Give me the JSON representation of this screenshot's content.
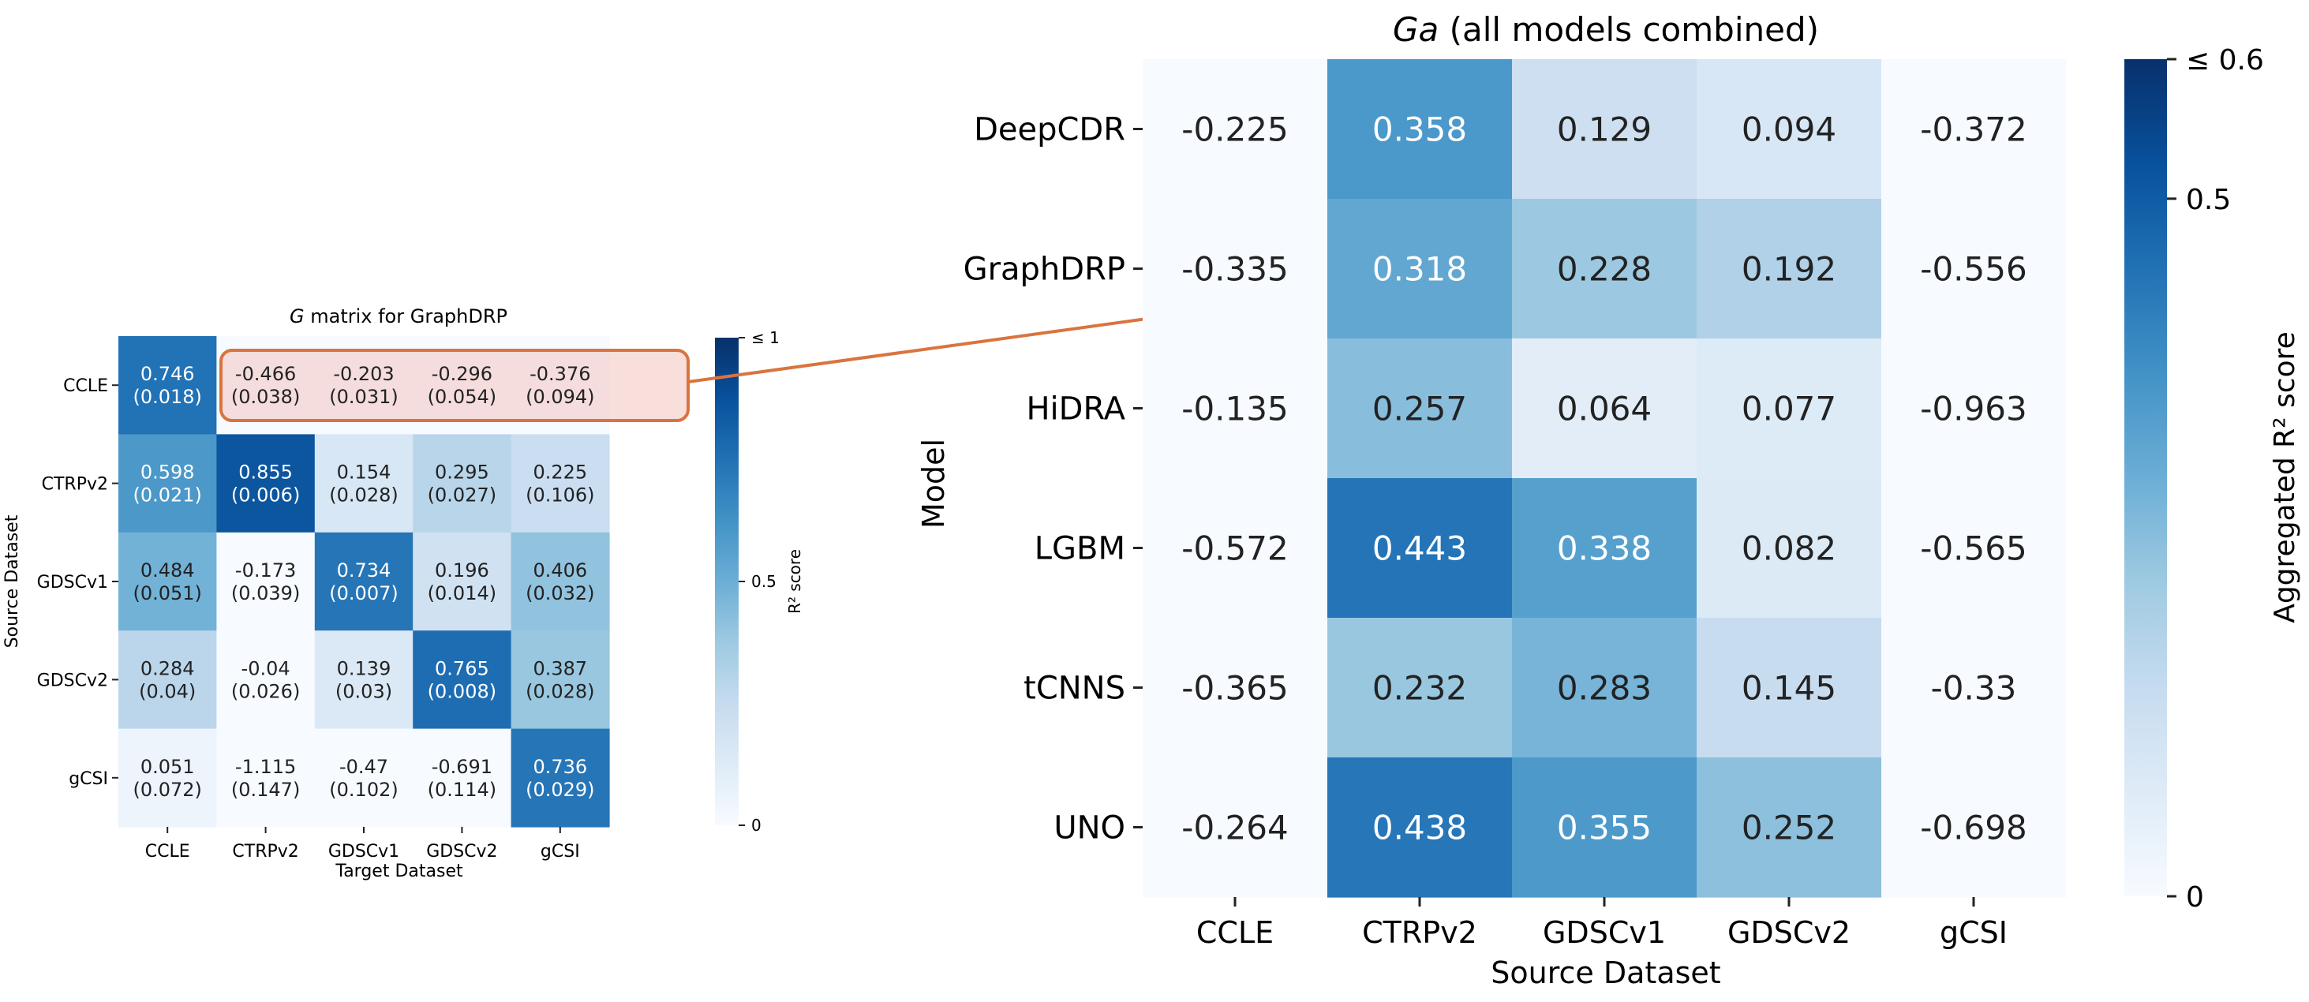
{
  "chart_data": [
    {
      "type": "heatmap",
      "title_italic": "G",
      "title_rest": " matrix for GraphDRP",
      "xlabel": "Target Dataset",
      "ylabel": "Source Dataset",
      "x_categories": [
        "CCLE",
        "CTRPv2",
        "GDSCv1",
        "GDSCv2",
        "gCSI"
      ],
      "y_categories": [
        "CCLE",
        "CTRPv2",
        "GDSCv1",
        "GDSCv2",
        "gCSI"
      ],
      "values": [
        [
          0.746,
          -0.466,
          -0.203,
          -0.296,
          -0.376
        ],
        [
          0.598,
          0.855,
          0.154,
          0.295,
          0.225
        ],
        [
          0.484,
          -0.173,
          0.734,
          0.196,
          0.406
        ],
        [
          0.284,
          -0.04,
          0.139,
          0.765,
          0.387
        ],
        [
          0.051,
          -1.115,
          -0.47,
          -0.691,
          0.736
        ]
      ],
      "std": [
        [
          0.018,
          0.038,
          0.031,
          0.054,
          0.094
        ],
        [
          0.021,
          0.006,
          0.028,
          0.027,
          0.106
        ],
        [
          0.051,
          0.039,
          0.007,
          0.014,
          0.032
        ],
        [
          0.04,
          0.026,
          0.03,
          0.008,
          0.028
        ],
        [
          0.072,
          0.147,
          0.102,
          0.114,
          0.029
        ]
      ],
      "color_range": [
        0,
        1
      ],
      "colorbar": {
        "label": "R² score",
        "ticks": [
          0,
          0.5,
          1
        ],
        "tick_labels": [
          "0",
          "0.5",
          "≤ 1"
        ]
      },
      "highlighted_row": "CCLE"
    },
    {
      "type": "heatmap",
      "title_italic": "Ga",
      "title_rest": " (all models combined)",
      "xlabel": "Source Dataset",
      "ylabel": "Model",
      "x_categories": [
        "CCLE",
        "CTRPv2",
        "GDSCv1",
        "GDSCv2",
        "gCSI"
      ],
      "y_categories": [
        "DeepCDR",
        "GraphDRP",
        "HiDRA",
        "LGBM",
        "tCNNS",
        "UNO"
      ],
      "values": [
        [
          -0.225,
          0.358,
          0.129,
          0.094,
          -0.372
        ],
        [
          -0.335,
          0.318,
          0.228,
          0.192,
          -0.556
        ],
        [
          -0.135,
          0.257,
          0.064,
          0.077,
          -0.963
        ],
        [
          -0.572,
          0.443,
          0.338,
          0.082,
          -0.565
        ],
        [
          -0.365,
          0.232,
          0.283,
          0.145,
          -0.33
        ],
        [
          -0.264,
          0.438,
          0.355,
          0.252,
          -0.698
        ]
      ],
      "color_range": [
        0,
        0.6
      ],
      "colorbar": {
        "label": "Aggregated R² score",
        "ticks": [
          0,
          0.5,
          0.6
        ],
        "tick_labels": [
          "0",
          "0.5",
          "≤ 0.6"
        ]
      },
      "arrow_target_row": "GraphDRP"
    }
  ],
  "colors": {
    "cmap": [
      "#f7fbff",
      "#deebf7",
      "#c6dbef",
      "#9ecae1",
      "#6baed6",
      "#4292c6",
      "#2171b5",
      "#08519c",
      "#08306b"
    ],
    "highlight_stroke": "#d9743f",
    "highlight_fill": "#f3c4c0",
    "arrow": "#d9743f"
  }
}
